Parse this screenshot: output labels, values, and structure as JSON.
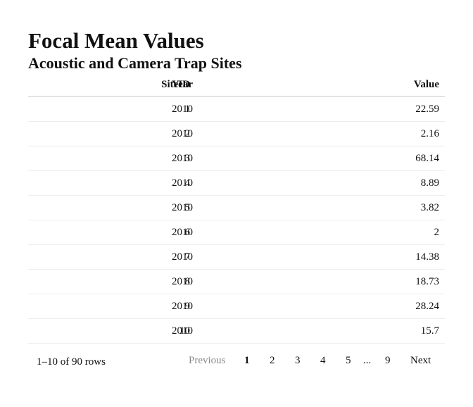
{
  "title": "Focal Mean Values",
  "subtitle": "Acoustic and Camera Trap Sites",
  "columns": {
    "siteid": "SiteID",
    "year": "Year",
    "value": "Value"
  },
  "rows": [
    {
      "siteid": "1",
      "year": "2010",
      "value": "22.59"
    },
    {
      "siteid": "2",
      "year": "2010",
      "value": "2.16"
    },
    {
      "siteid": "3",
      "year": "2010",
      "value": "68.14"
    },
    {
      "siteid": "4",
      "year": "2010",
      "value": "8.89"
    },
    {
      "siteid": "5",
      "year": "2010",
      "value": "3.82"
    },
    {
      "siteid": "6",
      "year": "2010",
      "value": "2"
    },
    {
      "siteid": "7",
      "year": "2010",
      "value": "14.38"
    },
    {
      "siteid": "8",
      "year": "2010",
      "value": "18.73"
    },
    {
      "siteid": "9",
      "year": "2010",
      "value": "28.24"
    },
    {
      "siteid": "10",
      "year": "2010",
      "value": "15.7"
    }
  ],
  "pagination": {
    "row_info": "1–10 of 90 rows",
    "previous": "Previous",
    "next": "Next",
    "ellipsis": "...",
    "pages": [
      "1",
      "2",
      "3",
      "4",
      "5",
      "9"
    ],
    "current_page": "1"
  }
}
